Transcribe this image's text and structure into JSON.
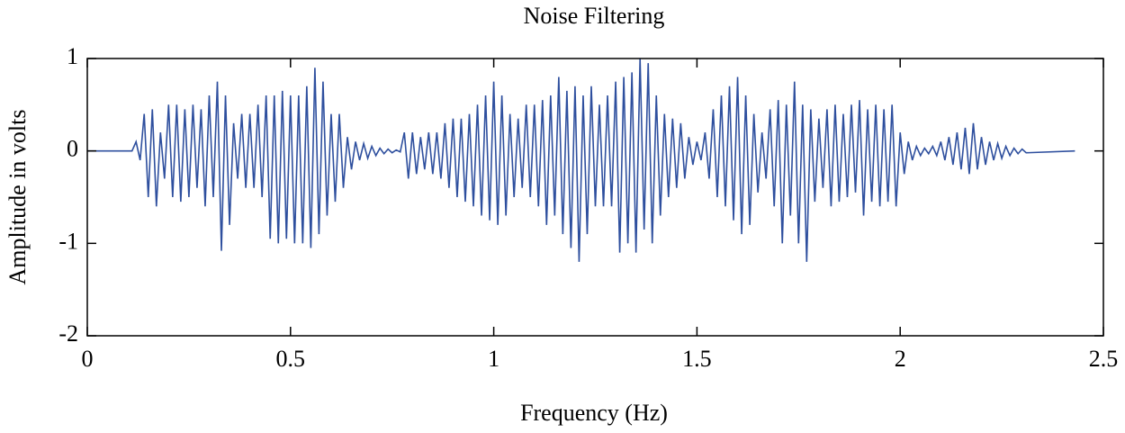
{
  "chart_data": {
    "type": "line",
    "title": "Noise Filtering",
    "x_label": "Frequency (Hz)",
    "y_label": "Amplitude in volts",
    "color": "#2e4f9e",
    "x": [
      0,
      0.11,
      0.12,
      0.13,
      0.14,
      0.15,
      0.16,
      0.17,
      0.18,
      0.19,
      0.2,
      0.21,
      0.22,
      0.23,
      0.24,
      0.25,
      0.26,
      0.27,
      0.28,
      0.29,
      0.3,
      0.31,
      0.32,
      0.33,
      0.34,
      0.35,
      0.36,
      0.37,
      0.38,
      0.39,
      0.4,
      0.41,
      0.42,
      0.43,
      0.44,
      0.45,
      0.46,
      0.47,
      0.48,
      0.49,
      0.5,
      0.51,
      0.52,
      0.53,
      0.54,
      0.55,
      0.56,
      0.57,
      0.58,
      0.59,
      0.6,
      0.61,
      0.62,
      0.63,
      0.64,
      0.65,
      0.66,
      0.67,
      0.68,
      0.69,
      0.7,
      0.71,
      0.72,
      0.73,
      0.74,
      0.75,
      0.76,
      0.77,
      0.78,
      0.79,
      0.8,
      0.81,
      0.82,
      0.83,
      0.84,
      0.85,
      0.86,
      0.87,
      0.88,
      0.89,
      0.9,
      0.91,
      0.92,
      0.93,
      0.94,
      0.95,
      0.96,
      0.97,
      0.98,
      0.99,
      1,
      1.01,
      1.02,
      1.03,
      1.04,
      1.05,
      1.06,
      1.07,
      1.08,
      1.09,
      1.1,
      1.11,
      1.12,
      1.13,
      1.14,
      1.15,
      1.16,
      1.17,
      1.18,
      1.19,
      1.2,
      1.21,
      1.22,
      1.23,
      1.24,
      1.25,
      1.26,
      1.27,
      1.28,
      1.29,
      1.3,
      1.31,
      1.32,
      1.33,
      1.34,
      1.35,
      1.36,
      1.37,
      1.38,
      1.39,
      1.4,
      1.41,
      1.42,
      1.43,
      1.44,
      1.45,
      1.46,
      1.47,
      1.48,
      1.49,
      1.5,
      1.51,
      1.52,
      1.53,
      1.54,
      1.55,
      1.56,
      1.57,
      1.58,
      1.59,
      1.6,
      1.61,
      1.62,
      1.63,
      1.64,
      1.65,
      1.66,
      1.67,
      1.68,
      1.69,
      1.7,
      1.71,
      1.72,
      1.73,
      1.74,
      1.75,
      1.76,
      1.77,
      1.78,
      1.79,
      1.8,
      1.81,
      1.82,
      1.83,
      1.84,
      1.85,
      1.86,
      1.87,
      1.88,
      1.89,
      1.9,
      1.91,
      1.92,
      1.93,
      1.94,
      1.95,
      1.96,
      1.97,
      1.98,
      1.99,
      2,
      2.01,
      2.02,
      2.03,
      2.04,
      2.05,
      2.06,
      2.07,
      2.08,
      2.09,
      2.1,
      2.11,
      2.12,
      2.13,
      2.14,
      2.15,
      2.16,
      2.17,
      2.18,
      2.19,
      2.2,
      2.21,
      2.22,
      2.23,
      2.24,
      2.25,
      2.26,
      2.27,
      2.28,
      2.29,
      2.3,
      2.31,
      2.43
    ],
    "values": [
      0,
      0,
      0.1,
      -0.1,
      0.4,
      -0.5,
      0.45,
      -0.6,
      0.2,
      -0.3,
      0.5,
      -0.5,
      0.5,
      -0.55,
      0.45,
      -0.5,
      0.5,
      -0.4,
      0.45,
      -0.6,
      0.6,
      -0.5,
      0.75,
      -1.08,
      0.6,
      -0.8,
      0.3,
      -0.3,
      0.4,
      -0.4,
      0.4,
      -0.4,
      0.5,
      -0.5,
      0.6,
      -0.95,
      0.6,
      -1.0,
      0.65,
      -0.95,
      0.6,
      -1.0,
      0.6,
      -1.0,
      0.7,
      -1.05,
      0.9,
      -0.9,
      0.75,
      -0.7,
      0.4,
      -0.55,
      0.4,
      -0.4,
      0.15,
      -0.2,
      0.1,
      -0.1,
      0.08,
      -0.08,
      0.05,
      -0.05,
      0.03,
      -0.03,
      0.02,
      -0.02,
      0.01,
      -0.01,
      0.2,
      -0.3,
      0.2,
      -0.25,
      0.15,
      -0.2,
      0.2,
      -0.25,
      0.2,
      -0.3,
      0.3,
      -0.4,
      0.35,
      -0.5,
      0.35,
      -0.55,
      0.4,
      -0.6,
      0.5,
      -0.7,
      0.6,
      -0.75,
      0.75,
      -0.8,
      0.6,
      -0.7,
      0.4,
      -0.5,
      0.35,
      -0.4,
      0.5,
      -0.5,
      0.5,
      -0.6,
      0.55,
      -0.8,
      0.6,
      -0.7,
      0.8,
      -0.9,
      0.65,
      -1.05,
      0.7,
      -1.2,
      0.6,
      -0.9,
      0.7,
      -0.6,
      0.5,
      -0.6,
      0.6,
      -0.6,
      0.75,
      -1.1,
      0.8,
      -1.0,
      0.85,
      -1.1,
      1.0,
      -0.85,
      0.95,
      -1.0,
      0.6,
      -0.7,
      0.4,
      -0.5,
      0.35,
      -0.4,
      0.3,
      -0.3,
      0.15,
      -0.15,
      0.1,
      -0.1,
      0.2,
      -0.3,
      0.45,
      -0.5,
      0.6,
      -0.6,
      0.7,
      -0.75,
      0.8,
      -0.9,
      0.6,
      -0.8,
      0.4,
      -0.45,
      0.2,
      -0.3,
      0.45,
      -0.6,
      0.55,
      -1.0,
      0.5,
      -0.7,
      0.75,
      -1.0,
      0.5,
      -1.2,
      0.45,
      -0.55,
      0.35,
      -0.4,
      0.45,
      -0.6,
      0.5,
      -0.55,
      0.4,
      -0.5,
      0.5,
      -0.45,
      0.55,
      -0.7,
      0.45,
      -0.55,
      0.5,
      -0.6,
      0.45,
      -0.55,
      0.5,
      -0.6,
      0.2,
      -0.25,
      0.1,
      -0.1,
      0.05,
      -0.05,
      0.03,
      -0.03,
      0.05,
      -0.05,
      0.1,
      -0.1,
      0.15,
      -0.15,
      0.2,
      -0.2,
      0.25,
      -0.25,
      0.3,
      -0.2,
      0.15,
      -0.15,
      0.1,
      -0.1,
      0.08,
      -0.08,
      0.05,
      -0.05,
      0.03,
      -0.03,
      0.02,
      -0.02,
      0
    ],
    "xlim": [
      0,
      2.5
    ],
    "xticks": [
      0,
      0.5,
      1,
      1.5,
      2,
      2.5
    ],
    "ylim": [
      -2,
      1
    ],
    "yticks": [
      -2,
      -1,
      0,
      1
    ]
  }
}
